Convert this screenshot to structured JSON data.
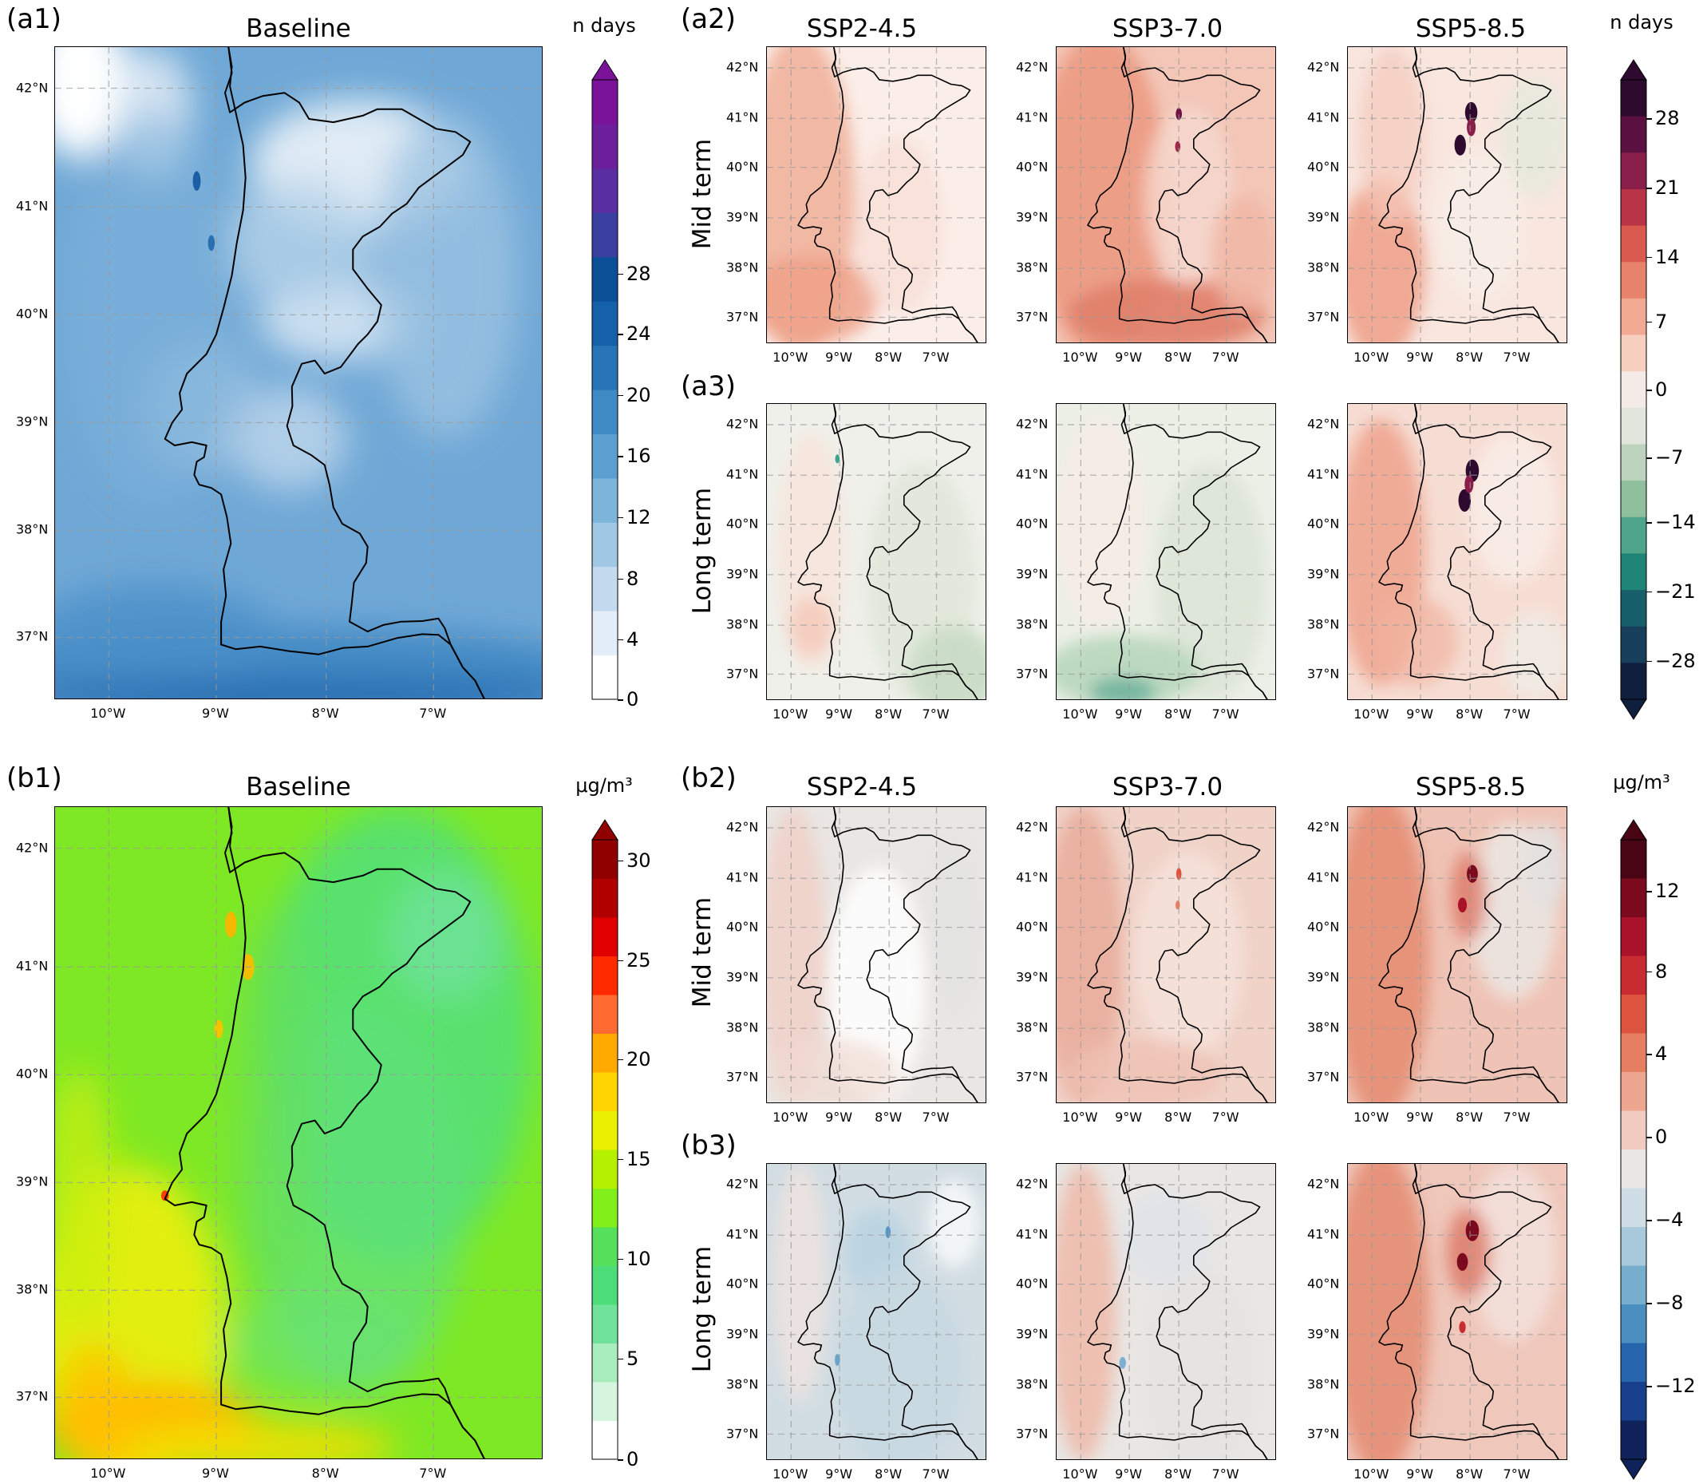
{
  "figure": {
    "section_a": {
      "baseline": {
        "label": "(a1)",
        "title": "Baseline"
      },
      "diff_mid_label": "(a2)",
      "diff_long_label": "(a3)",
      "unit": "n days",
      "baseline_colorbar": {
        "ticks": [
          "0",
          "4",
          "8",
          "12",
          "16",
          "20",
          "24",
          "28"
        ],
        "colors": [
          "#ffffff",
          "#e4eef8",
          "#c4daee",
          "#a0c8e4",
          "#7cb4da",
          "#5b9fd0",
          "#3f8ac4",
          "#2674b6",
          "#1561a9",
          "#0b4f96",
          "#3a3fa0",
          "#5a2ea3",
          "#6b1f9a",
          "#7b139a"
        ]
      },
      "diff_colorbar": {
        "ticks": [
          "28",
          "21",
          "14",
          "7",
          "0",
          "−7",
          "−14",
          "−21",
          "−28"
        ],
        "colors": [
          "#2d0a2e",
          "#5a1040",
          "#8a1e4a",
          "#b83447",
          "#d95b4f",
          "#e8836b",
          "#f1a991",
          "#f6cfbe",
          "#f5ebe6",
          "#e1e6dc",
          "#bdd3bd",
          "#8fbf9c",
          "#4ea58a",
          "#1e8476",
          "#17606b",
          "#173e5a",
          "#111f3f"
        ]
      }
    },
    "section_b": {
      "baseline": {
        "label": "(b1)",
        "title": "Baseline"
      },
      "diff_mid_label": "(b2)",
      "diff_long_label": "(b3)",
      "unit": "μg/m³",
      "baseline_colorbar": {
        "ticks": [
          "0",
          "5",
          "10",
          "15",
          "20",
          "25",
          "30"
        ],
        "colors": [
          "#ffffff",
          "#d6f5de",
          "#a9ecbe",
          "#71e29a",
          "#4cdc78",
          "#54e05a",
          "#80ef1a",
          "#b5f000",
          "#e8f000",
          "#ffd400",
          "#ffaa00",
          "#ff6a30",
          "#ff2a00",
          "#e00000",
          "#b00000",
          "#900000"
        ]
      },
      "diff_colorbar": {
        "ticks": [
          "12",
          "8",
          "4",
          "0",
          "−4",
          "−8",
          "−12"
        ],
        "colors": [
          "#4a0514",
          "#7b0a1e",
          "#a8132a",
          "#c92c30",
          "#dc543d",
          "#e67e62",
          "#eda690",
          "#f2cbc0",
          "#eae6e3",
          "#cfdde6",
          "#a7c9db",
          "#77adcd",
          "#4a8fbf",
          "#2766ac",
          "#173f8c",
          "#0f2259"
        ]
      }
    },
    "scenarios": [
      "SSP2-4.5",
      "SSP3-7.0",
      "SSP5-8.5"
    ],
    "row_labels": {
      "mid": "Mid term",
      "long": "Long term"
    },
    "lat_labels": [
      "42°N",
      "41°N",
      "40°N",
      "39°N",
      "38°N",
      "37°N"
    ],
    "lon_labels": [
      "10°W",
      "9°W",
      "8°W",
      "7°W"
    ],
    "colors": {
      "bg_a1": "#6fa8d6",
      "bg_b1": "#7ee824",
      "coast": "#000000",
      "grid": "#9a9a9a"
    }
  }
}
